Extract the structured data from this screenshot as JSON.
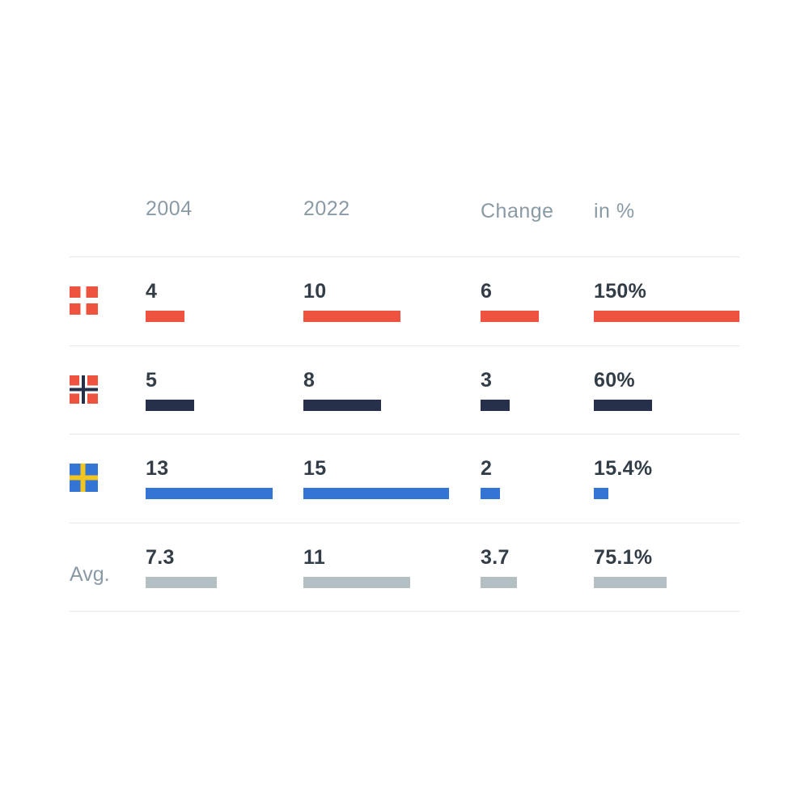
{
  "chart_data": {
    "type": "table",
    "columns": [
      {
        "key": "y2004",
        "label": "2004",
        "max": 13
      },
      {
        "key": "y2022",
        "label": "2022",
        "max": 15
      },
      {
        "key": "change",
        "label": "Change",
        "max": 6
      },
      {
        "key": "pct",
        "label": "in %",
        "max": 150
      }
    ],
    "rows": [
      {
        "flag": "denmark-flag-icon",
        "color": "#ee5340",
        "values": {
          "y2004": 4,
          "y2022": 10,
          "change": 6,
          "pct": 150
        },
        "labels": {
          "y2004": "4",
          "y2022": "10",
          "change": "6",
          "pct": "150%"
        }
      },
      {
        "flag": "norway-flag-icon",
        "color": "#26304a",
        "values": {
          "y2004": 5,
          "y2022": 8,
          "change": 3,
          "pct": 60
        },
        "labels": {
          "y2004": "5",
          "y2022": "8",
          "change": "3",
          "pct": "60%"
        }
      },
      {
        "flag": "sweden-flag-icon",
        "color": "#3474d4",
        "values": {
          "y2004": 13,
          "y2022": 15,
          "change": 2,
          "pct": 15.4
        },
        "labels": {
          "y2004": "13",
          "y2022": "15",
          "change": "2",
          "pct": "15.4%"
        }
      },
      {
        "label": "Avg.",
        "color": "#b4bfc3",
        "values": {
          "y2004": 7.3,
          "y2022": 11,
          "change": 3.7,
          "pct": 75.1
        },
        "labels": {
          "y2004": "7.3",
          "y2022": "11",
          "change": "3.7",
          "pct": "75.1%"
        }
      }
    ]
  }
}
